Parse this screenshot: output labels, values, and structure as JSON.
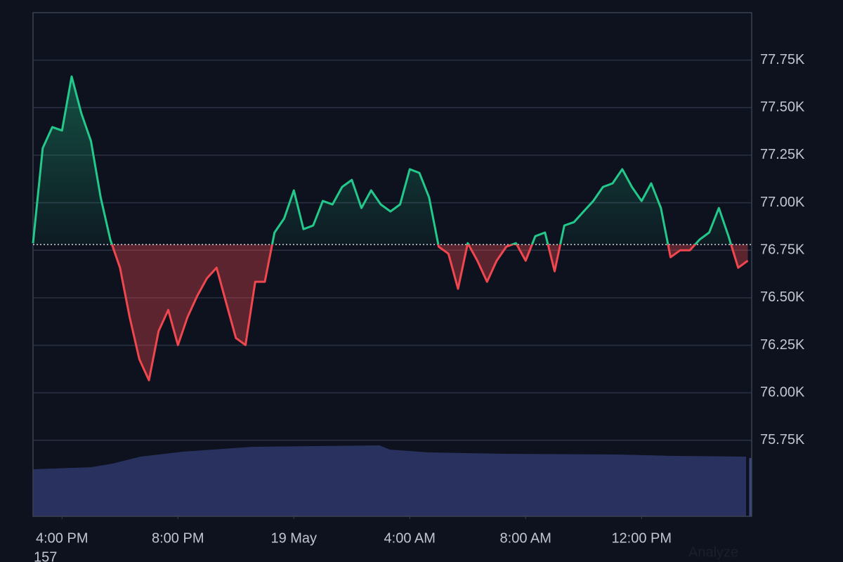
{
  "chart_data": {
    "type": "line",
    "x": [
      "15:00",
      "15:20",
      "15:40",
      "16:00",
      "16:20",
      "16:40",
      "17:00",
      "17:20",
      "17:40",
      "18:00",
      "18:20",
      "18:40",
      "19:00",
      "19:20",
      "19:40",
      "20:00",
      "20:20",
      "20:40",
      "21:00",
      "21:20",
      "21:40",
      "22:00",
      "22:20",
      "22:40",
      "23:00",
      "23:20",
      "23:40",
      "00:00",
      "00:20",
      "00:40",
      "01:00",
      "01:20",
      "01:40",
      "02:00",
      "02:20",
      "02:40",
      "03:00",
      "03:20",
      "03:40",
      "04:00",
      "04:20",
      "04:40",
      "05:00",
      "05:20",
      "05:40",
      "06:00",
      "06:20",
      "06:40",
      "07:00",
      "07:20",
      "07:40",
      "08:00",
      "08:20",
      "08:40",
      "09:00",
      "09:20",
      "09:40",
      "10:00",
      "10:20",
      "10:40",
      "11:00",
      "11:20",
      "11:40",
      "12:00",
      "12:20",
      "12:40",
      "13:00",
      "13:20",
      "13:40",
      "14:00",
      "14:20",
      "14:40",
      "15:00",
      "15:20",
      "15:40"
    ],
    "values": [
      76787,
      77287,
      77398,
      77380,
      77664,
      77470,
      77324,
      77028,
      76806,
      76658,
      76399,
      76177,
      76066,
      76325,
      76436,
      76251,
      76399,
      76510,
      76602,
      76658,
      76473,
      76288,
      76251,
      76584,
      76584,
      76843,
      76917,
      77065,
      76861,
      76880,
      77009,
      76991,
      77083,
      77120,
      76972,
      77065,
      76991,
      76954,
      76991,
      77176,
      77157,
      77028,
      76769,
      76732,
      76547,
      76787,
      76695,
      76584,
      76695,
      76769,
      76787,
      76695,
      76824,
      76843,
      76639,
      76880,
      76898,
      76954,
      77009,
      77083,
      77102,
      77176,
      77083,
      77009,
      77102,
      76972,
      76713,
      76750,
      76750,
      76806,
      76843,
      76972,
      76824,
      76658,
      76695
    ],
    "baseline": 76780,
    "up_color": "#22c98a",
    "down_color": "#f0474f",
    "xlim": [
      "15:00",
      "15:48"
    ],
    "xticks": [
      {
        "value": "16:00",
        "label": "4:00 PM"
      },
      {
        "value": "20:00",
        "label": "8:00 PM"
      },
      {
        "value": "00:00",
        "label": "19 May"
      },
      {
        "value": "04:00",
        "label": "4:00 AM"
      },
      {
        "value": "08:00",
        "label": "8:00 AM"
      },
      {
        "value": "12:00",
        "label": "12:00 PM"
      }
    ],
    "ylim": [
      75350,
      78000
    ],
    "yticks": [
      {
        "value": 75750,
        "label": "75.75K"
      },
      {
        "value": 76000,
        "label": "76.00K"
      },
      {
        "value": 76250,
        "label": "76.25K"
      },
      {
        "value": 76500,
        "label": "76.50K"
      },
      {
        "value": 76750,
        "label": "76.75K"
      },
      {
        "value": 77000,
        "label": "77.00K"
      },
      {
        "value": 77250,
        "label": "77.25K"
      },
      {
        "value": 77500,
        "label": "77.50K"
      },
      {
        "value": 77750,
        "label": "77.75K"
      }
    ],
    "grid": true,
    "corner_label": "157",
    "link_text": "Analyze"
  }
}
